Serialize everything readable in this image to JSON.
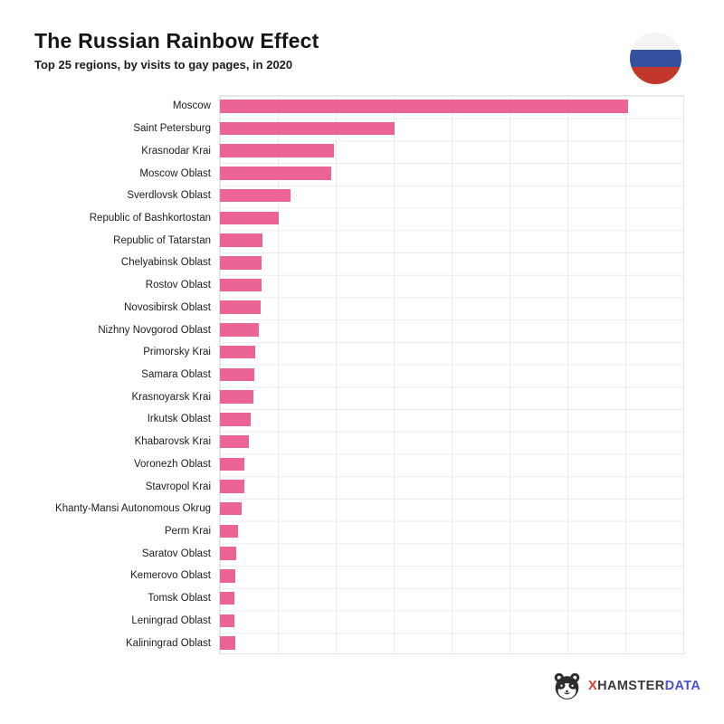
{
  "header": {
    "title": "The Russian Rainbow Effect",
    "subtitle": "Top 25 regions, by visits to gay pages, in 2020",
    "flag_icon": "russia-flag-circle-icon",
    "flag_colors": {
      "white": "#f4f4f4",
      "blue": "#33519e",
      "red": "#c23729"
    }
  },
  "chart_data": {
    "type": "bar",
    "orientation": "horizontal",
    "title": "The Russian Rainbow Effect",
    "subtitle": "Top 25 regions, by visits to gay pages, in 2020",
    "xlabel": "",
    "ylabel": "",
    "legend": false,
    "grid": true,
    "x_axis": {
      "tick_labels_visible": false,
      "gridline_intervals": 8,
      "xlim_relative": [
        0,
        114
      ]
    },
    "value_note": "Axis has no numeric labels; values estimated from bar lengths, indexed to Moscow = 100",
    "categories": [
      "Moscow",
      "Saint Petersburg",
      "Krasnodar Krai",
      "Moscow Oblast",
      "Sverdlovsk Oblast",
      "Republic of Bashkortostan",
      "Republic of Tatarstan",
      "Chelyabinsk Oblast",
      "Rostov Oblast",
      "Novosibirsk Oblast",
      "Nizhny Novgorod Oblast",
      "Primorsky Krai",
      "Samara Oblast",
      "Krasnoyarsk Krai",
      "Irkutsk Oblast",
      "Khabarovsk Krai",
      "Voronezh Oblast",
      "Stavropol Krai",
      "Khanty-Mansi Autonomous Okrug",
      "Perm Krai",
      "Saratov Oblast",
      "Kemerovo Oblast",
      "Tomsk Oblast",
      "Leningrad Oblast",
      "Kaliningrad Oblast"
    ],
    "values": [
      100,
      42.7,
      27.9,
      27.3,
      17.2,
      14.4,
      10.5,
      10.2,
      10.1,
      9.9,
      9.6,
      8.7,
      8.4,
      8.3,
      7.6,
      7.2,
      6.0,
      5.9,
      5.4,
      4.4,
      4.0,
      3.7,
      3.5,
      3.5,
      3.7
    ],
    "bar_color": "#ec6396",
    "grid_color": "#ececec"
  },
  "footer": {
    "logo_icon": "hamster-icon",
    "logo_text_parts": [
      {
        "text": "X",
        "color": "#d8402e"
      },
      {
        "text": "HAMSTER",
        "color": "#3b3b3b"
      },
      {
        "text": "DATA",
        "color": "#4a52c8"
      }
    ]
  }
}
